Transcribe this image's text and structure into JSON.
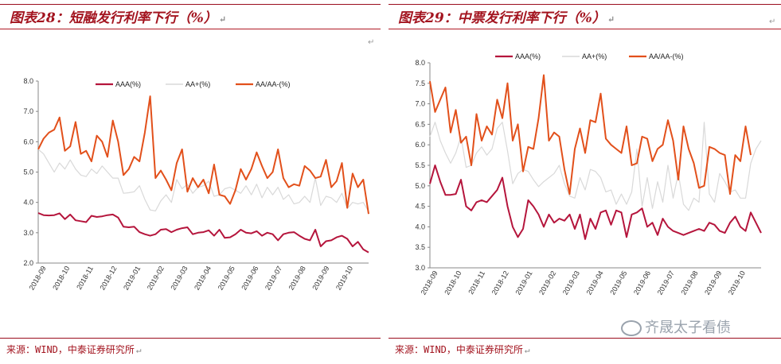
{
  "watermark": {
    "text": "齐晟太子看债"
  },
  "marks": {
    "return": "↵",
    "anchor": "⊢"
  },
  "panels": [
    {
      "title": "图表28：短融发行利率下行（%）",
      "source": "来源：WIND，中泰证券研究所"
    },
    {
      "title": "图表29：中票发行利率下行（%）",
      "source": "来源：WIND，中泰证券研究所"
    }
  ],
  "chart_data": [
    {
      "type": "line",
      "title": "图表28：短融发行利率下行（%）",
      "xlabel": "",
      "ylabel": "",
      "ylim": [
        2.0,
        8.0
      ],
      "yticks": [
        "2.0",
        "3.0",
        "4.0",
        "5.0",
        "6.0",
        "7.0",
        "8.0"
      ],
      "xticks": [
        "2018-09",
        "2018-10",
        "2018-11",
        "2018-12",
        "2019-01",
        "2019-02",
        "2019-03",
        "2019-04",
        "2019-05",
        "2019-06",
        "2019-07",
        "2019-08",
        "2019-09",
        "2019-10"
      ],
      "grid": false,
      "legend": "top",
      "series": [
        {
          "name": "AAA(%)",
          "color": "#b5153c",
          "values": [
            3.65,
            3.58,
            3.57,
            3.58,
            3.64,
            3.45,
            3.6,
            3.41,
            3.38,
            3.35,
            3.56,
            3.52,
            3.54,
            3.58,
            3.6,
            3.5,
            3.2,
            3.18,
            3.2,
            3.02,
            2.95,
            2.9,
            2.95,
            3.1,
            3.12,
            3.02,
            3.1,
            3.15,
            3.18,
            2.95,
            3.0,
            3.02,
            3.08,
            2.9,
            3.1,
            2.83,
            2.85,
            2.95,
            3.1,
            3.0,
            2.98,
            3.05,
            2.9,
            3.0,
            2.95,
            2.75,
            2.95,
            3.0,
            3.02,
            2.9,
            2.8,
            2.75,
            3.1,
            2.55,
            2.72,
            2.75,
            2.85,
            2.9,
            2.8,
            2.55,
            2.7,
            2.45,
            2.35
          ]
        },
        {
          "name": "AA+(%)",
          "color": "#d9d9d9",
          "values": [
            5.75,
            5.6,
            5.3,
            5.0,
            5.3,
            5.1,
            5.4,
            5.1,
            4.9,
            4.85,
            5.1,
            4.95,
            5.2,
            5.0,
            4.8,
            4.8,
            4.3,
            4.32,
            4.35,
            4.55,
            4.1,
            3.75,
            3.72,
            4.05,
            4.25,
            4.0,
            4.75,
            4.45,
            4.6,
            4.3,
            4.5,
            4.55,
            4.7,
            4.2,
            4.25,
            4.45,
            4.5,
            4.4,
            4.3,
            4.55,
            4.25,
            4.6,
            4.15,
            4.5,
            4.25,
            4.5,
            4.1,
            4.25,
            3.95,
            4.0,
            4.2,
            4.0,
            4.8,
            3.9,
            4.2,
            4.15,
            4.0,
            4.3,
            3.8,
            4.0,
            3.95,
            4.0,
            3.7
          ]
        },
        {
          "name": "AA/AA-(%)",
          "color": "#e2501b",
          "values": [
            5.75,
            6.1,
            6.3,
            6.4,
            6.8,
            5.7,
            5.85,
            6.65,
            5.6,
            5.7,
            5.35,
            6.2,
            6.0,
            5.5,
            6.7,
            6.0,
            4.9,
            5.1,
            5.5,
            5.35,
            6.3,
            7.5,
            4.8,
            5.05,
            4.75,
            4.4,
            5.3,
            5.75,
            4.35,
            4.8,
            4.5,
            4.75,
            4.3,
            5.25,
            4.25,
            4.2,
            3.95,
            4.4,
            5.1,
            4.75,
            5.1,
            5.65,
            5.2,
            4.8,
            5.0,
            5.75,
            4.8,
            4.5,
            4.6,
            4.55,
            5.2,
            5.05,
            4.8,
            4.85,
            5.4,
            4.5,
            4.7,
            5.3,
            3.82,
            4.95,
            4.5,
            4.75,
            3.62
          ]
        }
      ]
    },
    {
      "type": "line",
      "title": "图表29：中票发行利率下行（%）",
      "xlabel": "",
      "ylabel": "",
      "ylim": [
        3.0,
        8.0
      ],
      "yticks": [
        "3.0",
        "3.5",
        "4.0",
        "4.5",
        "5.0",
        "5.5",
        "6.0",
        "6.5",
        "7.0",
        "7.5",
        "8.0"
      ],
      "xticks": [
        "2018-09",
        "2018-10",
        "2018-11",
        "2018-12",
        "2019-01",
        "2019-02",
        "2019-03",
        "2019-04",
        "2019-05",
        "2019-06",
        "2019-07",
        "2019-08",
        "2019-09",
        "2019-10"
      ],
      "grid": false,
      "legend": "top",
      "series": [
        {
          "name": "AAA(%)",
          "color": "#b5153c",
          "values": [
            5.05,
            5.5,
            5.1,
            4.78,
            4.78,
            4.8,
            5.15,
            4.5,
            4.4,
            4.6,
            4.65,
            4.6,
            4.75,
            4.9,
            5.2,
            4.5,
            4.0,
            3.75,
            3.95,
            4.65,
            4.5,
            4.3,
            4.0,
            4.3,
            4.1,
            4.2,
            4.15,
            4.3,
            3.95,
            4.3,
            3.7,
            4.2,
            3.95,
            4.35,
            4.4,
            4.05,
            4.4,
            4.35,
            3.75,
            4.3,
            4.35,
            4.45,
            4.0,
            4.1,
            3.8,
            4.2,
            4.0,
            3.9,
            3.85,
            3.8,
            3.85,
            3.9,
            3.95,
            3.9,
            4.1,
            4.05,
            3.9,
            3.85,
            4.1,
            4.25,
            4.0,
            3.9,
            4.35,
            4.1,
            3.85
          ]
        },
        {
          "name": "AA+(%)",
          "color": "#d9d9d9",
          "values": [
            6.2,
            6.55,
            6.1,
            5.8,
            5.55,
            5.8,
            6.2,
            5.45,
            5.5,
            5.8,
            5.95,
            5.75,
            5.9,
            6.4,
            6.55,
            5.85,
            5.05,
            5.3,
            5.4,
            5.35,
            5.15,
            4.98,
            5.1,
            5.2,
            5.3,
            5.5,
            5.05,
            4.75,
            4.7,
            5.2,
            4.9,
            5.4,
            5.35,
            5.2,
            4.85,
            4.9,
            4.55,
            4.8,
            4.55,
            4.85,
            5.9,
            4.5,
            5.2,
            4.45,
            5.1,
            4.6,
            5.5,
            4.7,
            5.3,
            4.55,
            4.4,
            4.7,
            4.6,
            6.55,
            4.8,
            4.6,
            5.3,
            5.1,
            4.85,
            4.9,
            4.7,
            4.7,
            5.55,
            5.9,
            6.1
          ]
        },
        {
          "name": "AA/AA-(%)",
          "color": "#e2501b",
          "values": [
            7.55,
            6.8,
            7.1,
            7.4,
            6.3,
            6.85,
            6.05,
            6.2,
            5.5,
            6.75,
            6.1,
            6.45,
            6.25,
            7.1,
            6.65,
            7.5,
            6.1,
            6.5,
            5.35,
            5.95,
            5.9,
            6.65,
            7.7,
            6.1,
            6.3,
            6.2,
            5.4,
            4.8,
            5.9,
            6.4,
            5.8,
            6.6,
            6.55,
            7.25,
            6.15,
            6.0,
            5.9,
            5.8,
            6.45,
            5.5,
            5.55,
            6.2,
            6.15,
            5.6,
            5.9,
            6.0,
            6.6,
            6.1,
            5.15,
            6.45,
            5.9,
            5.55,
            4.95,
            5.0,
            5.95,
            5.9,
            5.8,
            5.75,
            4.8,
            5.75,
            5.6,
            6.45,
            5.75
          ]
        }
      ]
    }
  ]
}
